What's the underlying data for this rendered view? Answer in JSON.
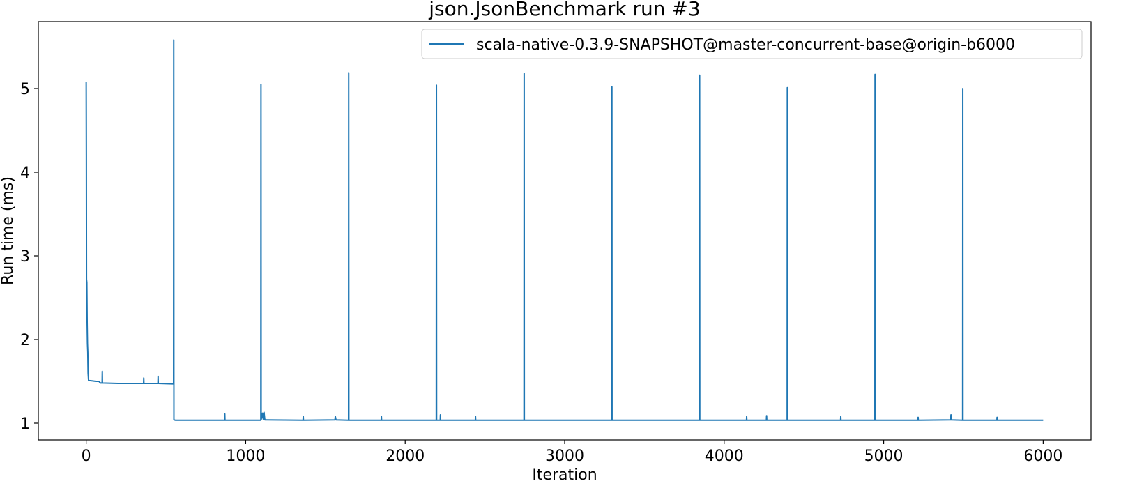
{
  "chart_data": {
    "type": "line",
    "title": "json.JsonBenchmark run #3",
    "xlabel": "Iteration",
    "ylabel": "Run time (ms)",
    "xlim": [
      -300,
      6300
    ],
    "ylim": [
      0.8,
      5.8
    ],
    "xticks": [
      0,
      1000,
      2000,
      3000,
      4000,
      5000,
      6000
    ],
    "yticks": [
      1,
      2,
      3,
      4,
      5
    ],
    "grid": false,
    "legend_position": "top-right",
    "colors": {
      "series": "#1f77b4"
    },
    "series": [
      {
        "name": "scala-native-0.3.9-SNAPSHOT@master-concurrent-base@origin-b6000",
        "points": [
          [
            0,
            5.08
          ],
          [
            1,
            4.2
          ],
          [
            2,
            2.72
          ],
          [
            4,
            2.68
          ],
          [
            6,
            2.2
          ],
          [
            8,
            1.95
          ],
          [
            10,
            1.85
          ],
          [
            12,
            1.6
          ],
          [
            15,
            1.51
          ],
          [
            40,
            1.505
          ],
          [
            60,
            1.5
          ],
          [
            80,
            1.5
          ],
          [
            90,
            1.48
          ],
          [
            100,
            1.48
          ],
          [
            101,
            1.62
          ],
          [
            102,
            1.48
          ],
          [
            200,
            1.475
          ],
          [
            300,
            1.475
          ],
          [
            360,
            1.475
          ],
          [
            361,
            1.54
          ],
          [
            362,
            1.475
          ],
          [
            450,
            1.475
          ],
          [
            451,
            1.56
          ],
          [
            452,
            1.475
          ],
          [
            540,
            1.47
          ],
          [
            548,
            1.47
          ],
          [
            549,
            5.58
          ],
          [
            550,
            1.04
          ],
          [
            560,
            1.035
          ],
          [
            868,
            1.035
          ],
          [
            869,
            1.11
          ],
          [
            870,
            1.035
          ],
          [
            1095,
            1.035
          ],
          [
            1096,
            5.05
          ],
          [
            1097,
            1.04
          ],
          [
            1105,
            1.12
          ],
          [
            1110,
            1.05
          ],
          [
            1115,
            1.13
          ],
          [
            1120,
            1.04
          ],
          [
            1360,
            1.035
          ],
          [
            1361,
            1.08
          ],
          [
            1362,
            1.035
          ],
          [
            1560,
            1.04
          ],
          [
            1562,
            1.08
          ],
          [
            1566,
            1.04
          ],
          [
            1645,
            1.035
          ],
          [
            1646,
            5.19
          ],
          [
            1647,
            1.035
          ],
          [
            1850,
            1.035
          ],
          [
            1851,
            1.08
          ],
          [
            1852,
            1.035
          ],
          [
            2195,
            1.035
          ],
          [
            2196,
            5.04
          ],
          [
            2197,
            1.035
          ],
          [
            2220,
            1.035
          ],
          [
            2221,
            1.1
          ],
          [
            2222,
            1.035
          ],
          [
            2440,
            1.035
          ],
          [
            2441,
            1.08
          ],
          [
            2442,
            1.035
          ],
          [
            2745,
            1.035
          ],
          [
            2746,
            5.18
          ],
          [
            2747,
            1.035
          ],
          [
            3295,
            1.035
          ],
          [
            3296,
            5.02
          ],
          [
            3297,
            1.035
          ],
          [
            3845,
            1.035
          ],
          [
            3846,
            5.16
          ],
          [
            3847,
            1.035
          ],
          [
            4140,
            1.035
          ],
          [
            4141,
            1.08
          ],
          [
            4142,
            1.035
          ],
          [
            4265,
            1.035
          ],
          [
            4266,
            1.09
          ],
          [
            4267,
            1.035
          ],
          [
            4395,
            1.035
          ],
          [
            4396,
            5.01
          ],
          [
            4397,
            1.035
          ],
          [
            4730,
            1.035
          ],
          [
            4731,
            1.08
          ],
          [
            4732,
            1.035
          ],
          [
            4945,
            1.035
          ],
          [
            4946,
            5.17
          ],
          [
            4947,
            1.035
          ],
          [
            5215,
            1.035
          ],
          [
            5216,
            1.07
          ],
          [
            5217,
            1.035
          ],
          [
            5420,
            1.04
          ],
          [
            5422,
            1.1
          ],
          [
            5425,
            1.04
          ],
          [
            5495,
            1.035
          ],
          [
            5496,
            5.0
          ],
          [
            5497,
            1.035
          ],
          [
            5710,
            1.035
          ],
          [
            5711,
            1.07
          ],
          [
            5712,
            1.035
          ],
          [
            6000,
            1.035
          ]
        ]
      }
    ]
  }
}
